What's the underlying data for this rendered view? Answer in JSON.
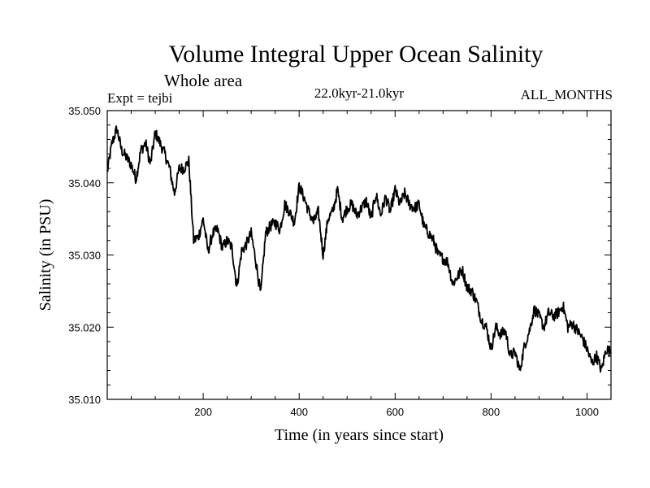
{
  "header": {
    "title": "Volume Integral Upper Ocean Salinity",
    "subtitle": "Whole area",
    "expt": "Expt = tejbi",
    "period": "22.0kyr-21.0kyr",
    "months": "ALL_MONTHS"
  },
  "chart_data": {
    "type": "line",
    "title": "Volume Integral Upper Ocean Salinity",
    "xlabel": "Time (in years since start)",
    "ylabel": "Salinity (in PSU)",
    "xlim": [
      0,
      1050
    ],
    "ylim": [
      35.01,
      35.05
    ],
    "x_ticks": [
      200,
      400,
      600,
      800,
      1000
    ],
    "y_ticks": [
      35.01,
      35.02,
      35.03,
      35.04,
      35.05
    ],
    "y_tick_labels": [
      "35.010",
      "35.020",
      "35.030",
      "35.040",
      "35.050"
    ],
    "grid": false,
    "line_color": "#000000",
    "series": [
      {
        "name": "salinity",
        "x": [
          0,
          10,
          20,
          30,
          40,
          50,
          60,
          70,
          80,
          90,
          100,
          110,
          120,
          130,
          140,
          150,
          160,
          170,
          180,
          190,
          200,
          210,
          220,
          230,
          240,
          250,
          260,
          270,
          280,
          290,
          300,
          310,
          320,
          330,
          340,
          350,
          360,
          370,
          380,
          390,
          400,
          410,
          420,
          430,
          440,
          450,
          460,
          470,
          480,
          490,
          500,
          510,
          520,
          530,
          540,
          550,
          560,
          570,
          580,
          590,
          600,
          610,
          620,
          630,
          640,
          650,
          660,
          670,
          680,
          690,
          700,
          710,
          720,
          730,
          740,
          750,
          760,
          770,
          780,
          790,
          800,
          810,
          820,
          830,
          840,
          850,
          860,
          870,
          880,
          890,
          900,
          910,
          920,
          930,
          940,
          950,
          960,
          970,
          980,
          990,
          1000,
          1010,
          1020,
          1030,
          1040,
          1050
        ],
        "values": [
          35.0415,
          35.0455,
          35.0475,
          35.0445,
          35.0435,
          35.0425,
          35.0405,
          35.0445,
          35.0455,
          35.0425,
          35.047,
          35.0455,
          35.044,
          35.042,
          35.0385,
          35.042,
          35.042,
          35.043,
          35.032,
          35.0325,
          35.035,
          35.0305,
          35.033,
          35.0335,
          35.031,
          35.032,
          35.031,
          35.0255,
          35.0305,
          35.0315,
          35.033,
          35.029,
          35.0245,
          35.033,
          35.034,
          35.0345,
          35.0335,
          35.037,
          35.036,
          35.0345,
          35.0395,
          35.038,
          35.036,
          35.0345,
          35.036,
          35.03,
          35.035,
          35.036,
          35.039,
          35.035,
          35.0365,
          35.037,
          35.0355,
          35.0365,
          35.0375,
          35.035,
          35.0385,
          35.0355,
          35.038,
          35.036,
          35.039,
          35.037,
          35.0385,
          35.037,
          35.0365,
          35.037,
          35.034,
          35.033,
          35.032,
          35.03,
          35.0295,
          35.029,
          35.026,
          35.027,
          35.028,
          35.0255,
          35.025,
          35.0235,
          35.021,
          35.02,
          35.017,
          35.02,
          35.019,
          35.0195,
          35.016,
          35.0165,
          35.014,
          35.0175,
          35.0195,
          35.0225,
          35.0215,
          35.02,
          35.022,
          35.0215,
          35.022,
          35.023,
          35.02,
          35.0205,
          35.0195,
          35.0185,
          35.017,
          35.015,
          35.016,
          35.014,
          35.017,
          35.0165
        ]
      }
    ]
  }
}
